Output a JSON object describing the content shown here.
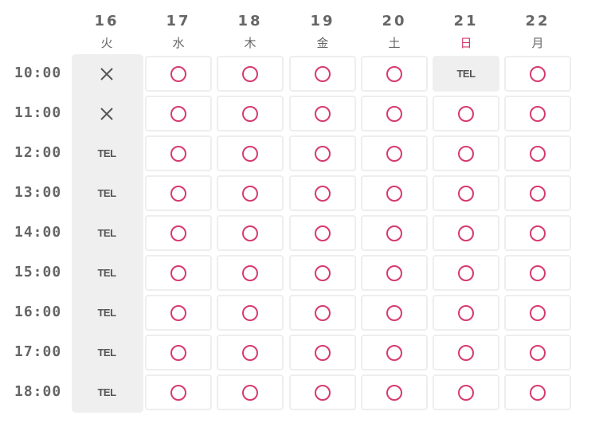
{
  "days": [
    {
      "num": "16",
      "week": "火"
    },
    {
      "num": "17",
      "week": "水"
    },
    {
      "num": "18",
      "week": "木"
    },
    {
      "num": "19",
      "week": "金"
    },
    {
      "num": "20",
      "week": "土"
    },
    {
      "num": "21",
      "week": "日",
      "highlight": true
    },
    {
      "num": "22",
      "week": "月"
    }
  ],
  "times": [
    "10:00",
    "11:00",
    "12:00",
    "13:00",
    "14:00",
    "15:00",
    "16:00",
    "17:00",
    "18:00"
  ],
  "colors": {
    "available": "#d63a6f",
    "text": "#666666",
    "closed_bg": "#efefef",
    "sunday": "#d63a6f"
  },
  "status_legend": {
    "available": "circle-icon",
    "unavailable": "cross-icon",
    "phone": "TEL"
  },
  "slots": [
    [
      "unavailable",
      "available",
      "available",
      "available",
      "available",
      "phone",
      "available"
    ],
    [
      "unavailable",
      "available",
      "available",
      "available",
      "available",
      "available",
      "available"
    ],
    [
      "phone",
      "available",
      "available",
      "available",
      "available",
      "available",
      "available"
    ],
    [
      "phone",
      "available",
      "available",
      "available",
      "available",
      "available",
      "available"
    ],
    [
      "phone",
      "available",
      "available",
      "available",
      "available",
      "available",
      "available"
    ],
    [
      "phone",
      "available",
      "available",
      "available",
      "available",
      "available",
      "available"
    ],
    [
      "phone",
      "available",
      "available",
      "available",
      "available",
      "available",
      "available"
    ],
    [
      "phone",
      "available",
      "available",
      "available",
      "available",
      "available",
      "available"
    ],
    [
      "phone",
      "available",
      "available",
      "available",
      "available",
      "available",
      "available"
    ]
  ]
}
